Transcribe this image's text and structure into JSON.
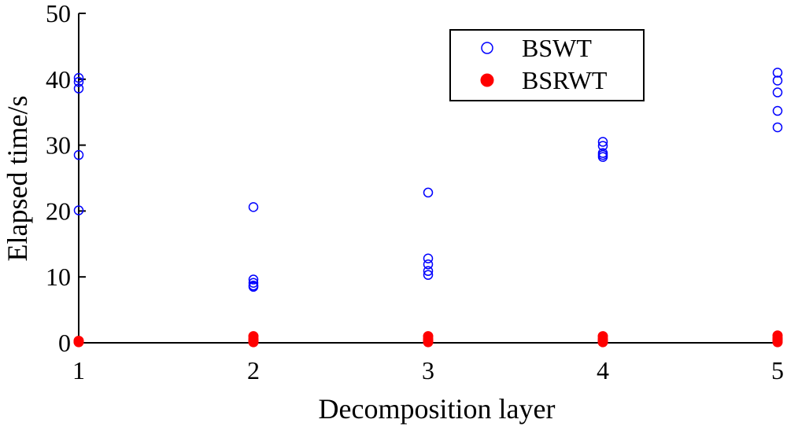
{
  "chart_data": {
    "type": "scatter",
    "xlabel": "Decomposition layer",
    "ylabel": "Elapsed time/s",
    "xlim": [
      1,
      5
    ],
    "ylim": [
      0,
      50
    ],
    "x_ticks": [
      1,
      2,
      3,
      4,
      5
    ],
    "y_ticks": [
      0,
      10,
      20,
      30,
      40,
      50
    ],
    "grid": false,
    "legend_position": "top-right",
    "series": [
      {
        "name": "BSWT",
        "marker": "open-circle",
        "color": "#0000ff",
        "points": [
          {
            "x": 1,
            "y": 40.2
          },
          {
            "x": 1,
            "y": 39.6
          },
          {
            "x": 1,
            "y": 38.6
          },
          {
            "x": 1,
            "y": 28.5
          },
          {
            "x": 1,
            "y": 20.1
          },
          {
            "x": 2,
            "y": 20.6
          },
          {
            "x": 2,
            "y": 9.6
          },
          {
            "x": 2,
            "y": 9.1
          },
          {
            "x": 2,
            "y": 8.7
          },
          {
            "x": 2,
            "y": 8.5
          },
          {
            "x": 3,
            "y": 22.8
          },
          {
            "x": 3,
            "y": 12.8
          },
          {
            "x": 3,
            "y": 11.9
          },
          {
            "x": 3,
            "y": 10.9
          },
          {
            "x": 3,
            "y": 10.3
          },
          {
            "x": 4,
            "y": 30.5
          },
          {
            "x": 4,
            "y": 29.9
          },
          {
            "x": 4,
            "y": 28.8
          },
          {
            "x": 4,
            "y": 28.5
          },
          {
            "x": 4,
            "y": 28.2
          },
          {
            "x": 5,
            "y": 41.0
          },
          {
            "x": 5,
            "y": 39.8
          },
          {
            "x": 5,
            "y": 38.0
          },
          {
            "x": 5,
            "y": 35.2
          },
          {
            "x": 5,
            "y": 32.7
          }
        ]
      },
      {
        "name": "BSRWT",
        "marker": "filled-circle",
        "color": "#ff0000",
        "points": [
          {
            "x": 1,
            "y": 0.3
          },
          {
            "x": 1,
            "y": 0.2
          },
          {
            "x": 1,
            "y": 0.1
          },
          {
            "x": 2,
            "y": 1.0
          },
          {
            "x": 2,
            "y": 0.6
          },
          {
            "x": 2,
            "y": 0.3
          },
          {
            "x": 2,
            "y": 0.1
          },
          {
            "x": 3,
            "y": 1.0
          },
          {
            "x": 3,
            "y": 0.6
          },
          {
            "x": 3,
            "y": 0.3
          },
          {
            "x": 3,
            "y": 0.1
          },
          {
            "x": 4,
            "y": 1.0
          },
          {
            "x": 4,
            "y": 0.6
          },
          {
            "x": 4,
            "y": 0.3
          },
          {
            "x": 4,
            "y": 0.1
          },
          {
            "x": 5,
            "y": 1.1
          },
          {
            "x": 5,
            "y": 0.7
          },
          {
            "x": 5,
            "y": 0.4
          },
          {
            "x": 5,
            "y": 0.1
          }
        ]
      }
    ]
  }
}
